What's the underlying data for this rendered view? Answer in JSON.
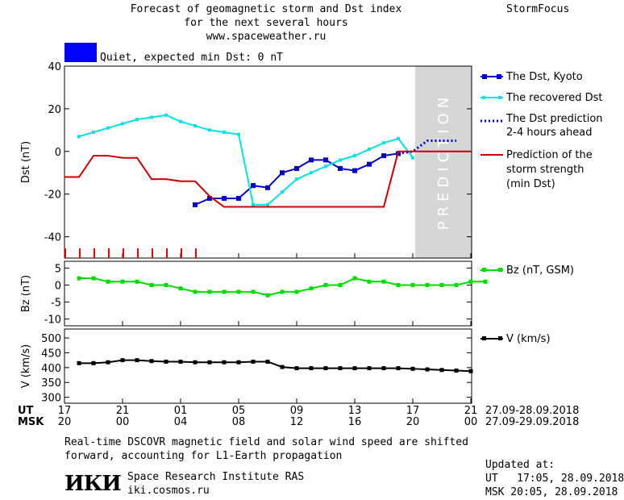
{
  "header": {
    "title_line1": "Forecast of geomagnetic storm and Dst index",
    "title_line2": "for the next several hours",
    "title_line3": "www.spaceweather.ru",
    "brand": "StormFocus",
    "status_label": "Quiet, expected min Dst: 0 nT",
    "status_color": "#0000ff"
  },
  "colors": {
    "dst_kyoto": "#0000cc",
    "dst_recovered": "#00e5e5",
    "dst_prediction": "#0000cc",
    "storm_strength": "#cc0000",
    "bz": "#00dd00",
    "v": "#000000",
    "prediction_zone": "#d6d6d6"
  },
  "chart_data": [
    {
      "type": "line",
      "panel": "dst",
      "ylabel": "Dst (nT)",
      "ylim": [
        -50,
        40
      ],
      "yticks": [
        40,
        20,
        0,
        -20,
        -40
      ],
      "x_range_hours": [
        0,
        28
      ],
      "prediction_label": "PREDICTION",
      "series": [
        {
          "name": "The Dst, Kyoto",
          "x": [
            9,
            10,
            11,
            12,
            13,
            14,
            15,
            16,
            17,
            18,
            19,
            20,
            21,
            22,
            23,
            24
          ],
          "values": [
            -25,
            -22,
            -22,
            -22,
            -16,
            -17,
            -10,
            -8,
            -4,
            -4,
            -8,
            -9,
            -6,
            -2,
            -1,
            null
          ]
        },
        {
          "name": "The recovered Dst",
          "x": [
            1,
            2,
            3,
            4,
            5,
            6,
            7,
            8,
            9,
            10,
            11,
            12,
            13,
            14,
            15,
            16,
            17,
            18,
            19,
            20,
            21,
            22,
            23,
            24
          ],
          "values": [
            7,
            9,
            11,
            13,
            15,
            16,
            17,
            14,
            12,
            10,
            9,
            8,
            -25,
            -25,
            -19,
            -13,
            -10,
            -7,
            -4,
            -2,
            1,
            4,
            6,
            -3
          ]
        },
        {
          "name": "The Dst prediction 2-4 hours ahead",
          "x": [
            23,
            24,
            25,
            26,
            27
          ],
          "values": [
            -1,
            0,
            5,
            5,
            5
          ]
        },
        {
          "name": "Prediction of the storm strength (min Dst)",
          "x": [
            0,
            1,
            2,
            3,
            4,
            5,
            6,
            7,
            8,
            9,
            10,
            11,
            12,
            13,
            14,
            15,
            16,
            17,
            18,
            19,
            20,
            21,
            22,
            23,
            24,
            25,
            26,
            27,
            28
          ],
          "values": [
            -12,
            -12,
            -2,
            -2,
            -3,
            -3,
            -13,
            -13,
            -14,
            -14,
            -21,
            -26,
            -26,
            -26,
            -26,
            -26,
            -26,
            -26,
            -26,
            -26,
            -26,
            -26,
            -26,
            0,
            0,
            0,
            0,
            0,
            0
          ]
        }
      ],
      "kp_bar_hours": [
        0,
        1,
        2,
        3,
        4,
        5,
        6,
        7,
        8,
        9
      ]
    },
    {
      "type": "line",
      "panel": "bz",
      "ylabel": "Bz (nT)",
      "ylim": [
        -12,
        7
      ],
      "yticks": [
        5,
        0,
        -5,
        -10
      ],
      "series": [
        {
          "name": "Bz (nT, GSM)",
          "x": [
            1,
            2,
            3,
            4,
            5,
            6,
            7,
            8,
            9,
            10,
            11,
            12,
            13,
            14,
            15,
            16,
            17,
            18,
            19,
            20,
            21,
            22,
            23,
            24,
            25,
            26,
            27,
            28,
            29
          ],
          "values": [
            2,
            2,
            1,
            1,
            1,
            0,
            0,
            -1,
            -2,
            -2,
            -2,
            -2,
            -2,
            -3,
            -2,
            -2,
            -1,
            0,
            0,
            2,
            1,
            1,
            0,
            0,
            0,
            0,
            0,
            1,
            1
          ]
        }
      ]
    },
    {
      "type": "line",
      "panel": "v",
      "ylabel": "V (km/s)",
      "ylim": [
        280,
        530
      ],
      "yticks": [
        500,
        450,
        400,
        350,
        300
      ],
      "series": [
        {
          "name": "V (km/s)",
          "x": [
            1,
            2,
            3,
            4,
            5,
            6,
            7,
            8,
            9,
            10,
            11,
            12,
            13,
            14,
            15,
            16,
            17,
            18,
            19,
            20,
            21,
            22,
            23,
            24,
            25,
            26,
            27,
            28
          ],
          "values": [
            415,
            415,
            418,
            425,
            425,
            422,
            420,
            420,
            418,
            418,
            418,
            418,
            420,
            420,
            402,
            398,
            398,
            398,
            398,
            398,
            398,
            398,
            398,
            396,
            394,
            392,
            390,
            388
          ]
        }
      ]
    }
  ],
  "legend": {
    "dst_kyoto": "The Dst, Kyoto",
    "recovered": "The recovered Dst",
    "prediction_l1": "The Dst prediction",
    "prediction_l2": "2-4 hours ahead",
    "strength_l1": "Prediction of the",
    "strength_l2": "storm strength",
    "strength_l3": "(min Dst)",
    "bz": "Bz (nT, GSM)",
    "v": "V (km/s)"
  },
  "time_axis": {
    "ut_label": "UT",
    "msk_label": "MSK",
    "ut_ticks": [
      "17",
      "21",
      "01",
      "05",
      "09",
      "13",
      "17",
      "21"
    ],
    "msk_ticks": [
      "20",
      "00",
      "04",
      "08",
      "12",
      "16",
      "20",
      "00"
    ],
    "ut_range": "27.09-28.09.2018",
    "msk_range": "27.09-29.09.2018"
  },
  "footer": {
    "note_line1": "Real-time DSCOVR magnetic field and solar wind speed are shifted",
    "note_line2": "forward, accounting for L1-Earth propagation",
    "logo_text": "ИКИ",
    "institute": "Space Research Institute RAS",
    "website": "iki.cosmos.ru",
    "updated_label": "Updated at:",
    "updated_ut": "UT   17:05, 28.09.2018",
    "updated_msk": "MSK 20:05, 28.09.2018"
  }
}
